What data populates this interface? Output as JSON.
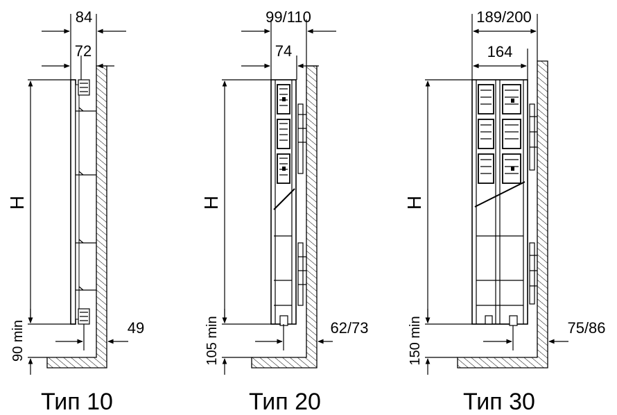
{
  "diagrams": [
    {
      "caption": "Тип 10",
      "top_dim": "84",
      "second_dim": "72",
      "height_label": "H",
      "floor_gap": "90 min",
      "wall_gap": "49"
    },
    {
      "caption": "Тип 20",
      "top_dim": "99/110",
      "second_dim": "74",
      "height_label": "H",
      "floor_gap": "105 min",
      "wall_gap": "62/73"
    },
    {
      "caption": "Тип 30",
      "top_dim": "189/200",
      "second_dim": "164",
      "height_label": "H",
      "floor_gap": "150 min",
      "wall_gap": "75/86"
    }
  ]
}
